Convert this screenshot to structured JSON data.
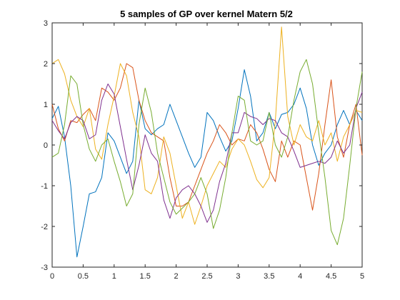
{
  "chart_data": {
    "type": "line",
    "title": "5 samples of GP over kernel Matern 5/2",
    "xlabel": "",
    "ylabel": "",
    "xlim": [
      0,
      5
    ],
    "ylim": [
      -3,
      3
    ],
    "xticks": [
      0,
      0.5,
      1,
      1.5,
      2,
      2.5,
      3,
      3.5,
      4,
      4.5,
      5
    ],
    "xtick_labels": [
      "0",
      "0.5",
      "1",
      "1.5",
      "2",
      "2.5",
      "3",
      "3.5",
      "4",
      "4.5",
      "5"
    ],
    "yticks": [
      -3,
      -2,
      -1,
      0,
      1,
      2,
      3
    ],
    "ytick_labels": [
      "-3",
      "-2",
      "-1",
      "0",
      "1",
      "2",
      "3"
    ],
    "grid": false,
    "x": [
      0,
      0.1,
      0.2,
      0.3,
      0.4,
      0.5,
      0.6,
      0.7,
      0.8,
      0.9,
      1.0,
      1.1,
      1.2,
      1.3,
      1.4,
      1.5,
      1.6,
      1.7,
      1.8,
      1.9,
      2.0,
      2.1,
      2.2,
      2.3,
      2.4,
      2.5,
      2.6,
      2.7,
      2.8,
      2.9,
      3.0,
      3.1,
      3.2,
      3.3,
      3.4,
      3.5,
      3.6,
      3.7,
      3.8,
      3.9,
      4.0,
      4.1,
      4.2,
      4.3,
      4.4,
      4.5,
      4.6,
      4.7,
      4.8,
      4.9,
      5.0
    ],
    "series": [
      {
        "color": "#0072BD",
        "values": [
          0.65,
          0.95,
          0.2,
          -1.0,
          -2.75,
          -2.0,
          -1.2,
          -1.15,
          -0.8,
          0.3,
          0.1,
          -0.3,
          -0.7,
          -0.4,
          1.1,
          0.4,
          0.25,
          0.4,
          0.5,
          1.0,
          0.6,
          0.2,
          -0.2,
          -0.55,
          -0.3,
          0.8,
          0.6,
          0.2,
          -0.15,
          0.1,
          0.9,
          1.85,
          1.2,
          0.1,
          0.3,
          0.8,
          0.4,
          0.75,
          0.8,
          1.0,
          1.4,
          0.9,
          0.0,
          -0.5,
          -0.2,
          0.0,
          0.5,
          0.85,
          0.5,
          0.85,
          0.6
        ]
      },
      {
        "color": "#D95319",
        "values": [
          1.0,
          0.4,
          0.1,
          0.6,
          0.55,
          0.75,
          0.9,
          0.6,
          1.4,
          1.3,
          1.1,
          1.4,
          2.0,
          1.9,
          1.1,
          0.6,
          0.3,
          0.2,
          0.1,
          -0.8,
          -1.5,
          -1.5,
          -1.4,
          -1.0,
          -0.6,
          -0.2,
          0.1,
          0.5,
          0.3,
          0.0,
          0.15,
          0.1,
          0.5,
          0.3,
          -0.1,
          -0.6,
          -0.9,
          0.1,
          -0.3,
          0.1,
          0.0,
          -0.8,
          -1.6,
          -0.7,
          0.5,
          1.6,
          0.2,
          -0.3,
          0.5,
          1.0,
          -0.25
        ]
      },
      {
        "color": "#EDB120",
        "values": [
          2.0,
          2.1,
          1.75,
          1.1,
          0.7,
          0.45,
          0.9,
          -0.1,
          -0.35,
          0.5,
          1.2,
          2.0,
          1.7,
          0.8,
          0.2,
          -1.1,
          -1.2,
          -0.8,
          0.2,
          -0.2,
          -1.0,
          -1.8,
          -1.4,
          -1.95,
          -1.5,
          -1.0,
          -0.7,
          -0.4,
          -0.55,
          -0.1,
          0.15,
          0.0,
          -0.4,
          -0.85,
          -1.05,
          -0.8,
          0.6,
          2.9,
          0.7,
          0.0,
          0.5,
          0.2,
          0.1,
          0.6,
          0.0,
          0.3,
          -0.4,
          0.2,
          0.5,
          0.85,
          0.8
        ]
      },
      {
        "color": "#7E2F8E",
        "values": [
          0.6,
          0.35,
          0.15,
          0.55,
          0.7,
          0.6,
          0.15,
          0.25,
          1.1,
          1.5,
          1.25,
          0.45,
          -0.35,
          -1.1,
          -0.5,
          0.25,
          -0.2,
          -0.4,
          -1.35,
          -1.8,
          -1.3,
          -1.1,
          -1.0,
          -1.2,
          -1.5,
          -1.9,
          -1.6,
          -0.9,
          -0.45,
          0.3,
          0.3,
          0.8,
          0.7,
          0.65,
          0.5,
          0.65,
          0.6,
          0.3,
          0.2,
          -0.15,
          -0.55,
          -0.5,
          -0.45,
          -0.4,
          -0.45,
          -0.3,
          0.1,
          -0.2,
          0.0,
          0.9,
          1.3
        ]
      },
      {
        "color": "#77AC30",
        "values": [
          -0.3,
          -0.2,
          0.5,
          1.7,
          1.5,
          0.5,
          -0.1,
          -0.4,
          0.0,
          0.15,
          -0.4,
          -0.9,
          -1.5,
          -1.2,
          0.5,
          1.4,
          0.8,
          -0.2,
          -0.8,
          -1.4,
          -1.7,
          -1.55,
          -1.4,
          -1.2,
          -0.8,
          -1.2,
          -2.05,
          -1.6,
          -0.8,
          0.3,
          1.2,
          1.1,
          0.1,
          0.0,
          0.1,
          0.8,
          0.0,
          -0.3,
          0.2,
          1.1,
          1.8,
          2.1,
          1.5,
          0.3,
          -0.8,
          -2.1,
          -2.45,
          -1.8,
          -0.5,
          0.9,
          1.8
        ]
      }
    ]
  }
}
